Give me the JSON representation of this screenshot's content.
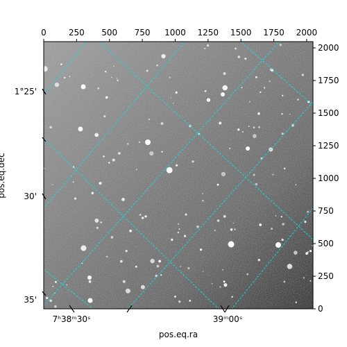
{
  "chart_data": {
    "type": "image",
    "description_kind": "astronomical sky image with WCS coordinate grid overlay",
    "colormap": "gray",
    "grid_color": "#00e5e5",
    "pixel_axis": {
      "range": [
        0,
        2048
      ],
      "top_ticks": [
        "0",
        "250",
        "500",
        "750",
        "1000",
        "1250",
        "1500",
        "1750",
        "2000"
      ],
      "top_tick_values": [
        0,
        250,
        500,
        750,
        1000,
        1250,
        1500,
        1750,
        2000
      ],
      "right_ticks": [
        "0",
        "250",
        "500",
        "750",
        "1000",
        "1250",
        "1500",
        "1750",
        "2000"
      ],
      "right_tick_values": [
        0,
        250,
        500,
        750,
        1000,
        1250,
        1500,
        1750,
        2000
      ]
    },
    "ra_axis": {
      "label": "pos.eq.ra",
      "tick_labels": [
        "7ʰ38ᵐ30ˢ",
        "39ᵐ00ˢ"
      ]
    },
    "dec_axis": {
      "label": "pos.eq.dec",
      "tick_labels": [
        "1°25'",
        "30'",
        "35'"
      ]
    }
  }
}
